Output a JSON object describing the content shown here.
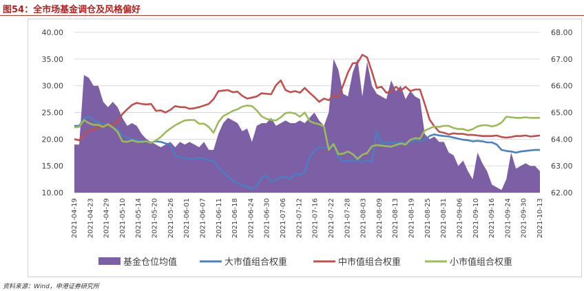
{
  "figure": {
    "title": "图54：全市场基金调仓及风格偏好",
    "source": "资料来源：Wind，申港证券研究所"
  },
  "chart_data": {
    "type": "area+line",
    "left_axis": {
      "min": 10,
      "max": 40,
      "ticks": [
        "40.00",
        "35.00",
        "30.00",
        "25.00",
        "20.00",
        "15.00",
        "10.00"
      ]
    },
    "right_axis": {
      "min": 62,
      "max": 68,
      "ticks": [
        "68.00",
        "67.00",
        "66.00",
        "65.00",
        "64.00",
        "63.00",
        "62.00"
      ]
    },
    "x_tick_labels": [
      "2021-04-19",
      "2021-04-23",
      "2021-04-29",
      "2021-05-10",
      "2021-05-14",
      "2021-05-20",
      "2021-05-26",
      "2021-06-01",
      "2021-06-07",
      "2021-06-11",
      "2021-06-18",
      "2021-06-24",
      "2021-06-30",
      "2021-07-06",
      "2021-07-12",
      "2021-07-16",
      "2021-07-22",
      "2021-07-28",
      "2021-08-03",
      "2021-08-09",
      "2021-08-13",
      "2021-08-19",
      "2021-08-25",
      "2021-08-31",
      "2021-09-06",
      "2021-09-10",
      "2021-09-16",
      "2021-09-24",
      "2021-09-30",
      "2021-10-13"
    ],
    "series": [
      {
        "name": "基金仓位均值",
        "axis": "right",
        "kind": "area",
        "color": "#7d5fa6",
        "values": [
          63.8,
          63.8,
          66.4,
          66.3,
          66.0,
          66.0,
          65.4,
          65.2,
          65.4,
          65.2,
          64.8,
          64.5,
          64.6,
          64.5,
          64.2,
          64.0,
          63.9,
          63.8,
          63.7,
          63.8,
          63.9,
          63.7,
          63.9,
          63.8,
          63.9,
          63.8,
          63.7,
          63.9,
          63.6,
          63.6,
          64.2,
          64.6,
          64.8,
          64.7,
          64.6,
          64.3,
          64.4,
          63.9,
          64.5,
          64.6,
          64.6,
          64.8,
          64.5,
          64.6,
          64.7,
          64.6,
          64.6,
          64.7,
          64.6,
          64.8,
          65.0,
          64.7,
          64.5,
          65.0,
          67.0,
          66.6,
          65.7,
          65.6,
          66.5,
          67.0,
          65.6,
          66.9,
          66.0,
          65.7,
          65.6,
          65.5,
          66.2,
          65.8,
          66.0,
          65.5,
          65.8,
          65.6,
          65.5,
          64.2,
          64.0,
          64.1,
          63.9,
          63.9,
          63.5,
          63.4,
          63.0,
          63.2,
          62.8,
          62.5,
          63.5,
          63.1,
          62.8,
          62.3,
          62.2,
          62.1,
          62.5,
          63.5,
          62.9,
          63.0,
          63.1,
          63.0,
          63.0,
          62.8
        ]
      },
      {
        "name": "大市值组合权重",
        "axis": "left",
        "kind": "line",
        "color": "#4a7fc0",
        "values": [
          22.5,
          22.5,
          23.8,
          24.3,
          23.5,
          23.2,
          22.8,
          22.4,
          22.2,
          21.8,
          20.6,
          20.3,
          20.0,
          19.8,
          19.6,
          19.5,
          19.4,
          19.6,
          19.5,
          19.2,
          19.0,
          17.0,
          16.6,
          16.5,
          16.3,
          16.3,
          16.5,
          16.4,
          16.1,
          15.9,
          14.8,
          13.8,
          13.0,
          12.3,
          11.8,
          11.4,
          11.1,
          10.8,
          11.2,
          12.8,
          13.2,
          12.1,
          12.4,
          12.9,
          12.9,
          12.6,
          13.5,
          13.3,
          13.8,
          16.6,
          17.9,
          18.5,
          18.4,
          18.6,
          19.0,
          16.7,
          15.8,
          16.0,
          15.9,
          16.1,
          15.7,
          16.0,
          15.8,
          21.5,
          19.3,
          19.3,
          19.4,
          19.3,
          19.4,
          19.2,
          19.5,
          19.8,
          19.6,
          19.8,
          20.6,
          20.9,
          20.7,
          20.6,
          20.5,
          20.3,
          20.1,
          19.9,
          19.8,
          19.6,
          19.7,
          19.6,
          19.4,
          19.4,
          19.0,
          18.0,
          17.8,
          17.7,
          17.5,
          17.7,
          17.8,
          17.9,
          18.0,
          18.0
        ]
      },
      {
        "name": "中市值组合权重",
        "axis": "left",
        "kind": "line",
        "color": "#c0504d",
        "values": [
          20.0,
          19.8,
          20.9,
          21.5,
          21.9,
          22.2,
          22.6,
          22.4,
          22.8,
          23.2,
          24.7,
          25.6,
          26.4,
          26.8,
          26.6,
          26.5,
          26.6,
          25.3,
          25.4,
          25.0,
          25.5,
          26.2,
          26.0,
          26.0,
          25.7,
          25.8,
          26.0,
          26.3,
          26.6,
          27.5,
          29.0,
          29.1,
          29.2,
          28.8,
          28.9,
          28.1,
          27.6,
          27.8,
          28.0,
          28.6,
          28.5,
          28.4,
          30.1,
          31.0,
          29.2,
          28.8,
          29.0,
          28.7,
          29.6,
          28.7,
          27.9,
          27.0,
          27.6,
          27.3,
          28.2,
          27.9,
          30.1,
          32.5,
          34.2,
          34.3,
          35.8,
          35.3,
          32.6,
          29.6,
          29.8,
          28.7,
          28.9,
          29.8,
          29.1,
          29.8,
          29.0,
          29.3,
          29.3,
          26.6,
          23.7,
          22.4,
          21.4,
          21.2,
          20.9,
          21.1,
          21.0,
          21.0,
          20.8,
          20.8,
          20.7,
          20.6,
          20.6,
          20.6,
          20.7,
          20.4,
          20.3,
          20.4,
          20.6,
          20.6,
          20.7,
          20.5,
          20.6,
          20.7
        ]
      },
      {
        "name": "小市值组合权重",
        "axis": "left",
        "kind": "line",
        "color": "#9bbb59",
        "values": [
          22.2,
          22.3,
          23.6,
          23.0,
          22.7,
          22.7,
          22.3,
          22.8,
          22.2,
          21.4,
          19.6,
          19.5,
          19.8,
          19.5,
          19.5,
          19.6,
          19.3,
          19.8,
          20.4,
          21.3,
          22.0,
          22.6,
          23.1,
          23.5,
          23.6,
          23.6,
          22.9,
          22.9,
          22.3,
          21.2,
          23.2,
          24.3,
          24.8,
          25.3,
          25.6,
          26.1,
          26.3,
          26.2,
          25.4,
          24.3,
          23.8,
          23.6,
          23.5,
          24.1,
          24.9,
          25.0,
          24.8,
          24.2,
          25.0,
          23.4,
          23.0,
          22.8,
          22.4,
          18.0,
          19.1,
          17.2,
          17.3,
          17.7,
          17.2,
          16.3,
          17.1,
          17.4,
          18.7,
          18.9,
          18.8,
          18.7,
          18.6,
          18.9,
          19.2,
          19.0,
          19.9,
          20.2,
          20.1,
          21.6,
          22.0,
          22.4,
          22.3,
          22.5,
          22.5,
          22.1,
          21.9,
          21.9,
          21.6,
          21.9,
          22.4,
          22.6,
          22.6,
          22.4,
          22.6,
          23.1,
          24.2,
          24.1,
          24.0,
          24.0,
          24.1,
          24.0,
          24.0,
          24.0
        ]
      }
    ],
    "legend_position": "bottom",
    "gridlines": true
  }
}
